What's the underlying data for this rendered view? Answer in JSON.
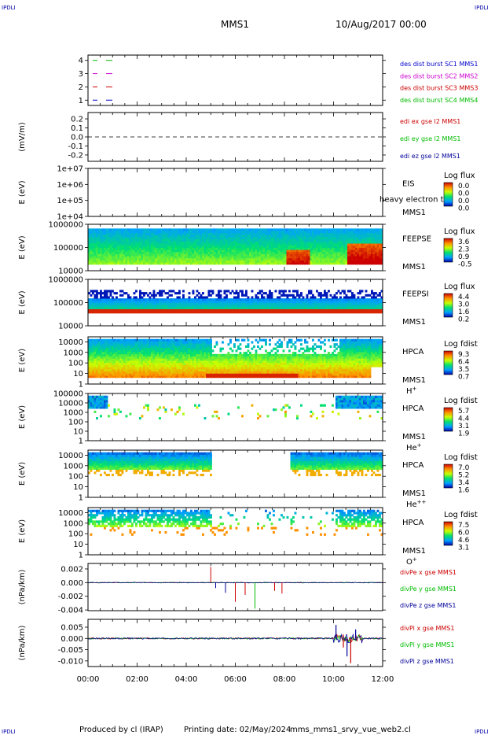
{
  "header": {
    "corner_left_top": "IPDLI",
    "corner_right_top": "IPDLI",
    "corner_left_bottom": "IPDLI",
    "corner_right_bottom": "IPDLI",
    "mission": "MMS1",
    "date": "10/Aug/2017 00:00"
  },
  "footer": {
    "produced_by": "Produced by cl (IRAP)",
    "printing_date": "Printing date: 02/May/2024",
    "filename": "mms_mms1_srvy_vue_web2.cl"
  },
  "colors": {
    "blue": "#0000cc",
    "magenta": "#cc00cc",
    "red": "#cc0000",
    "green": "#00bb00",
    "dark_blue": "#000099"
  },
  "chart_data": {
    "type": "stacked-timeseries",
    "x_ticks": [
      "00:00",
      "02:00",
      "04:00",
      "06:00",
      "08:00",
      "10:00",
      "12:00"
    ],
    "x_range_hours": [
      0,
      12
    ],
    "panels": [
      {
        "id": "des-dist",
        "type": "line",
        "ylabel": "",
        "ticks": [
          "4",
          "3",
          "2",
          "1"
        ],
        "tick_values": [
          4,
          3,
          2,
          1
        ],
        "ylim": [
          0.6,
          4.4
        ],
        "legend": [
          {
            "text": "des dist burst SC1 MMS1",
            "color": "#0000cc"
          },
          {
            "text": "des dist burst SC2 MMS2",
            "color": "#cc00cc"
          },
          {
            "text": "des dist burst SC3 MMS3",
            "color": "#cc0000"
          },
          {
            "text": "des dist burst SC4 MMS4",
            "color": "#00bb00"
          }
        ]
      },
      {
        "id": "edi",
        "type": "line",
        "ylabel": "(mV/m)",
        "ticks": [
          "0.2",
          "0.1",
          "0.0",
          "-0.1",
          "-0.2"
        ],
        "tick_values": [
          0.2,
          0.1,
          0.0,
          -0.1,
          -0.2
        ],
        "ylim": [
          -0.27,
          0.27
        ],
        "legend": [
          {
            "text": "edi ex gse l2 MMS1",
            "color": "#cc0000"
          },
          {
            "text": "edi ey gse l2 MMS1",
            "color": "#00bb00"
          },
          {
            "text": "edi ez gse l2 MMS1",
            "color": "#000099"
          }
        ]
      },
      {
        "id": "eis",
        "type": "heatmap",
        "ylabel": "E (eV)",
        "ticks": [
          "1e+07",
          "1e+06",
          "1e+05",
          "1e+04"
        ],
        "tick_values": [
          10000000,
          1000000,
          100000,
          10000
        ],
        "ylim": [
          10000,
          10000000
        ],
        "yscale": "log",
        "name": [
          "EIS",
          "MMS1"
        ],
        "overlay_text": "heavy electron to",
        "colorbar_title": "Log flux",
        "colorbar_ticks": [
          "0.0",
          "0.0",
          "0.0",
          "0.0"
        ]
      },
      {
        "id": "feepse",
        "type": "heatmap",
        "ylabel": "E (eV)",
        "ticks": [
          "1000000",
          "100000",
          "10000"
        ],
        "tick_values": [
          1000000,
          100000,
          10000
        ],
        "ylim": [
          10000,
          1000000
        ],
        "yscale": "log",
        "name": [
          "FEEPSE",
          "MMS1"
        ],
        "colorbar_title": "Log flux",
        "colorbar_ticks": [
          "3.6",
          "2.3",
          "0.9",
          "-0.5"
        ]
      },
      {
        "id": "feepsi",
        "type": "heatmap",
        "ylabel": "E (eV)",
        "ticks": [
          "1000000",
          "100000",
          "10000"
        ],
        "tick_values": [
          1000000,
          100000,
          10000
        ],
        "ylim": [
          10000,
          1000000
        ],
        "yscale": "log",
        "name": [
          "FEEPSI",
          "MMS1"
        ],
        "colorbar_title": "Log flux",
        "colorbar_ticks": [
          "4.4",
          "3.0",
          "1.6",
          "0.2"
        ]
      },
      {
        "id": "hpca-h",
        "type": "heatmap",
        "ylabel": "E (eV)",
        "ticks": [
          "10000",
          "1000",
          "100",
          "10",
          "1"
        ],
        "tick_values": [
          10000,
          1000,
          100,
          10,
          1
        ],
        "ylim": [
          1,
          30000
        ],
        "yscale": "log",
        "name": [
          "HPCA",
          "MMS1"
        ],
        "species": "H",
        "species_sup": "+",
        "colorbar_title": "Log fdist",
        "colorbar_ticks": [
          "9.3",
          "6.4",
          "3.5",
          "0.7"
        ]
      },
      {
        "id": "hpca-he",
        "type": "heatmap",
        "ylabel": "E (eV)",
        "ticks": [
          "100000",
          "10000",
          "1000",
          "100",
          "10",
          "1"
        ],
        "tick_values": [
          100000,
          10000,
          1000,
          100,
          10,
          1
        ],
        "ylim": [
          1,
          100000
        ],
        "yscale": "log",
        "name": [
          "HPCA",
          "MMS1"
        ],
        "species": "He",
        "species_sup": "+",
        "colorbar_title": "Log fdist",
        "colorbar_ticks": [
          "5.7",
          "4.4",
          "3.1",
          "1.9"
        ]
      },
      {
        "id": "hpca-he2",
        "type": "heatmap",
        "ylabel": "E (eV)",
        "ticks": [
          "10000",
          "1000",
          "100",
          "10",
          "1"
        ],
        "tick_values": [
          10000,
          1000,
          100,
          10,
          1
        ],
        "ylim": [
          1,
          30000
        ],
        "yscale": "log",
        "name": [
          "HPCA",
          "MMS1"
        ],
        "species": "He",
        "species_sup": "++",
        "colorbar_title": "Log fdist",
        "colorbar_ticks": [
          "7.0",
          "5.2",
          "3.4",
          "1.6"
        ]
      },
      {
        "id": "hpca-o",
        "type": "heatmap",
        "ylabel": "E (eV)",
        "ticks": [
          "10000",
          "1000",
          "100",
          "10",
          "1"
        ],
        "tick_values": [
          10000,
          1000,
          100,
          10,
          1
        ],
        "ylim": [
          1,
          30000
        ],
        "yscale": "log",
        "name": [
          "HPCA",
          "MMS1"
        ],
        "species": "O",
        "species_sup": "+",
        "colorbar_title": "Log fdist",
        "colorbar_ticks": [
          "7.5",
          "6.0",
          "4.6",
          "3.1"
        ]
      },
      {
        "id": "divpe",
        "type": "line",
        "ylabel": "(nPa/km)",
        "ticks": [
          "0.002",
          "0.000",
          "-0.002",
          "-0.004"
        ],
        "tick_values": [
          0.002,
          0.0,
          -0.002,
          -0.004
        ],
        "ylim": [
          -0.0041,
          0.0028
        ],
        "legend": [
          {
            "text": "divPe x gse MMS1",
            "color": "#cc0000"
          },
          {
            "text": "divPe y gse MMS1",
            "color": "#00bb00"
          },
          {
            "text": "divPe z gse MMS1",
            "color": "#000099"
          }
        ]
      },
      {
        "id": "divpi",
        "type": "line",
        "ylabel": "(nPa/km)",
        "ticks": [
          "0.005",
          "0.000",
          "-0.005",
          "-0.010"
        ],
        "tick_values": [
          0.005,
          0.0,
          -0.005,
          -0.01
        ],
        "ylim": [
          -0.0125,
          0.0085
        ],
        "legend": [
          {
            "text": "divPi x gse MMS1",
            "color": "#cc0000"
          },
          {
            "text": "divPi y gse MMS1",
            "color": "#00bb00"
          },
          {
            "text": "divPi z gse MMS1",
            "color": "#000099"
          }
        ]
      }
    ]
  }
}
